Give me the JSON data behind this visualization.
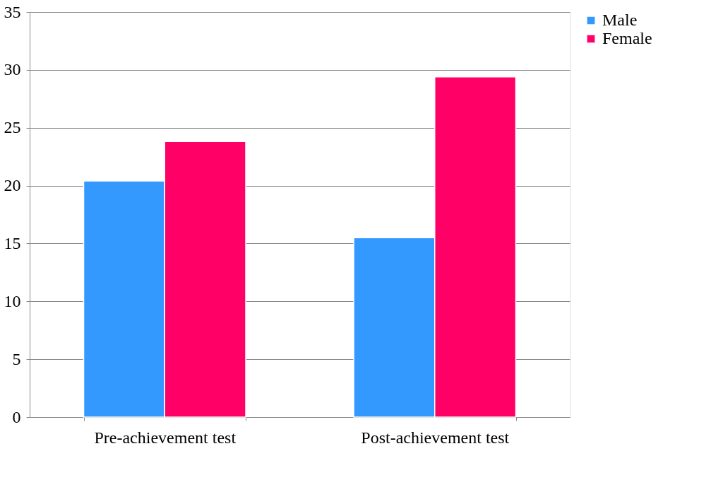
{
  "chart_data": {
    "type": "bar",
    "categories": [
      "Pre-achievement test",
      "Post-achievement test"
    ],
    "series": [
      {
        "name": "Male",
        "color": "#3399ff",
        "values": [
          20.4,
          15.5
        ]
      },
      {
        "name": "Female",
        "color": "#ff0066",
        "values": [
          23.8,
          29.4
        ]
      }
    ],
    "ylim": [
      0,
      35
    ],
    "yticks": [
      0,
      5,
      10,
      15,
      20,
      25,
      30,
      35
    ],
    "grid": "y",
    "legend": "right"
  }
}
